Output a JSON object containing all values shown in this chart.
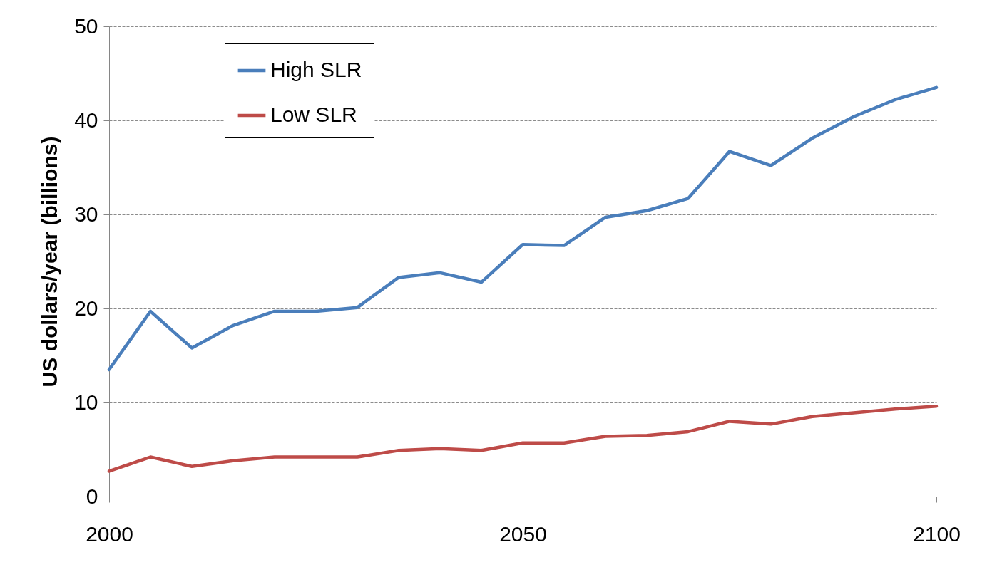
{
  "chart_data": {
    "type": "line",
    "ylabel": "US dollars/year (billions)",
    "x": [
      2000,
      2005,
      2010,
      2015,
      2020,
      2025,
      2030,
      2035,
      2040,
      2045,
      2050,
      2055,
      2060,
      2065,
      2070,
      2075,
      2080,
      2085,
      2090,
      2095,
      2100
    ],
    "series": [
      {
        "name": "High SLR",
        "color": "#4a7ebb",
        "values": [
          13.5,
          19.7,
          15.8,
          18.2,
          19.7,
          19.7,
          20.1,
          23.3,
          23.8,
          22.8,
          26.8,
          26.7,
          29.7,
          30.4,
          31.7,
          36.7,
          35.2,
          38.1,
          40.4,
          42.2,
          43.5
        ]
      },
      {
        "name": "Low SLR",
        "color": "#be4b48",
        "values": [
          2.7,
          4.2,
          3.2,
          3.8,
          4.2,
          4.2,
          4.2,
          4.9,
          5.1,
          4.9,
          5.7,
          5.7,
          6.4,
          6.5,
          6.9,
          8.0,
          7.7,
          8.5,
          8.9,
          9.3,
          9.6
        ]
      }
    ],
    "xlim": [
      2000,
      2100
    ],
    "xticks": [
      2000,
      2050,
      2100
    ],
    "ylim": [
      0,
      50
    ],
    "yticks": [
      0,
      10,
      20,
      30,
      40,
      50
    ],
    "grid": "y",
    "legend": "top left",
    "marker": "none",
    "line_style": "solid"
  }
}
